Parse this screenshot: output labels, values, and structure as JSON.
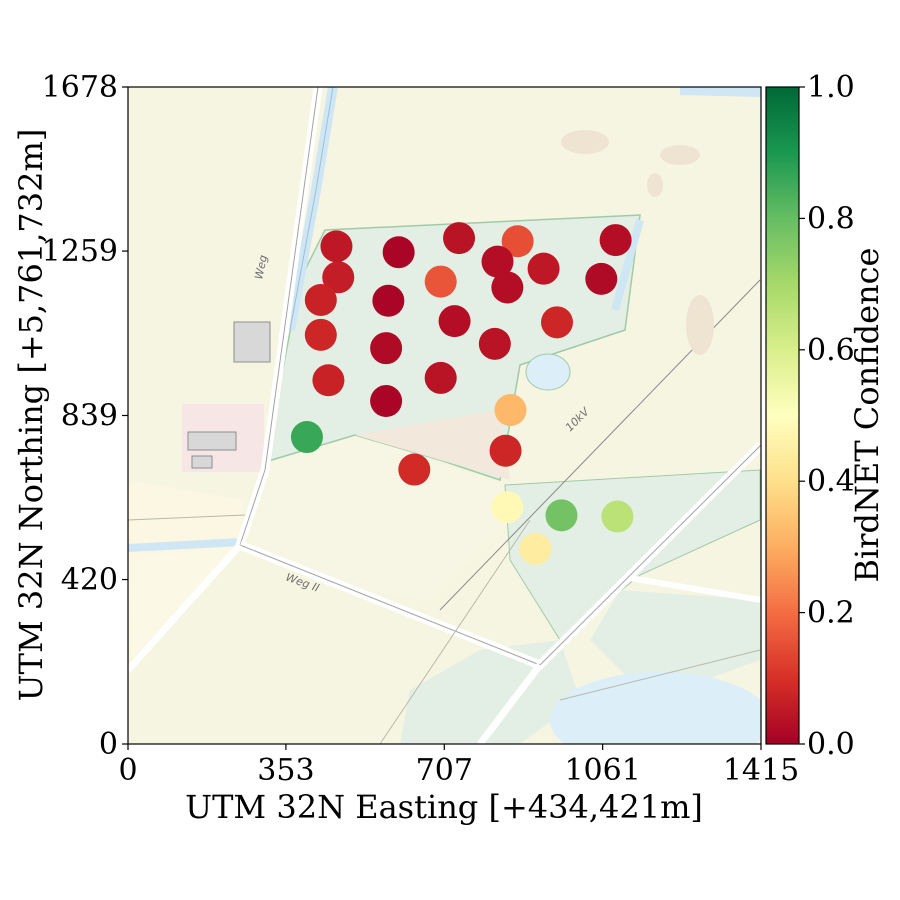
{
  "chart_data": {
    "type": "scatter",
    "xlabel": "UTM 32N Easting [+434,421m]",
    "ylabel": "UTM 32N Northing [+5,761,732m]",
    "xlim": [
      0,
      1415
    ],
    "ylim": [
      0,
      1678
    ],
    "xticks": [
      "0",
      "353",
      "707",
      "1061",
      "1415"
    ],
    "yticks": [
      "0",
      "420",
      "839",
      "1259",
      "1678"
    ],
    "colorbar": {
      "label": "BirdNET Confidence",
      "range": [
        0,
        1
      ],
      "ticks": [
        "0.0",
        "0.2",
        "0.4",
        "0.6",
        "0.8",
        "1.0"
      ],
      "colormap": "RdYlGn"
    },
    "background": "topographic map",
    "map_labels": [
      "Weg",
      "Weg II",
      "10kV"
    ],
    "points": [
      {
        "x": 466,
        "y": 1271,
        "confidence": 0.05
      },
      {
        "x": 605,
        "y": 1256,
        "confidence": 0.01
      },
      {
        "x": 740,
        "y": 1292,
        "confidence": 0.04
      },
      {
        "x": 871,
        "y": 1284,
        "confidence": 0.15
      },
      {
        "x": 1090,
        "y": 1287,
        "confidence": 0.03
      },
      {
        "x": 826,
        "y": 1232,
        "confidence": 0.03
      },
      {
        "x": 929,
        "y": 1214,
        "confidence": 0.05
      },
      {
        "x": 470,
        "y": 1192,
        "confidence": 0.06
      },
      {
        "x": 1058,
        "y": 1188,
        "confidence": 0.02
      },
      {
        "x": 699,
        "y": 1181,
        "confidence": 0.16
      },
      {
        "x": 848,
        "y": 1166,
        "confidence": 0.03
      },
      {
        "x": 431,
        "y": 1134,
        "confidence": 0.07
      },
      {
        "x": 582,
        "y": 1132,
        "confidence": 0.01
      },
      {
        "x": 730,
        "y": 1080,
        "confidence": 0.03
      },
      {
        "x": 959,
        "y": 1077,
        "confidence": 0.08
      },
      {
        "x": 431,
        "y": 1045,
        "confidence": 0.08
      },
      {
        "x": 577,
        "y": 1011,
        "confidence": 0.02
      },
      {
        "x": 820,
        "y": 1022,
        "confidence": 0.04
      },
      {
        "x": 448,
        "y": 929,
        "confidence": 0.07
      },
      {
        "x": 699,
        "y": 935,
        "confidence": 0.04
      },
      {
        "x": 577,
        "y": 876,
        "confidence": 0.01
      },
      {
        "x": 855,
        "y": 853,
        "confidence": 0.32
      },
      {
        "x": 400,
        "y": 784,
        "confidence": 0.86
      },
      {
        "x": 844,
        "y": 749,
        "confidence": 0.08
      },
      {
        "x": 640,
        "y": 701,
        "confidence": 0.09
      },
      {
        "x": 848,
        "y": 605,
        "confidence": 0.48
      },
      {
        "x": 969,
        "y": 584,
        "confidence": 0.78
      },
      {
        "x": 1094,
        "y": 581,
        "confidence": 0.66
      },
      {
        "x": 911,
        "y": 498,
        "confidence": 0.44
      }
    ]
  }
}
